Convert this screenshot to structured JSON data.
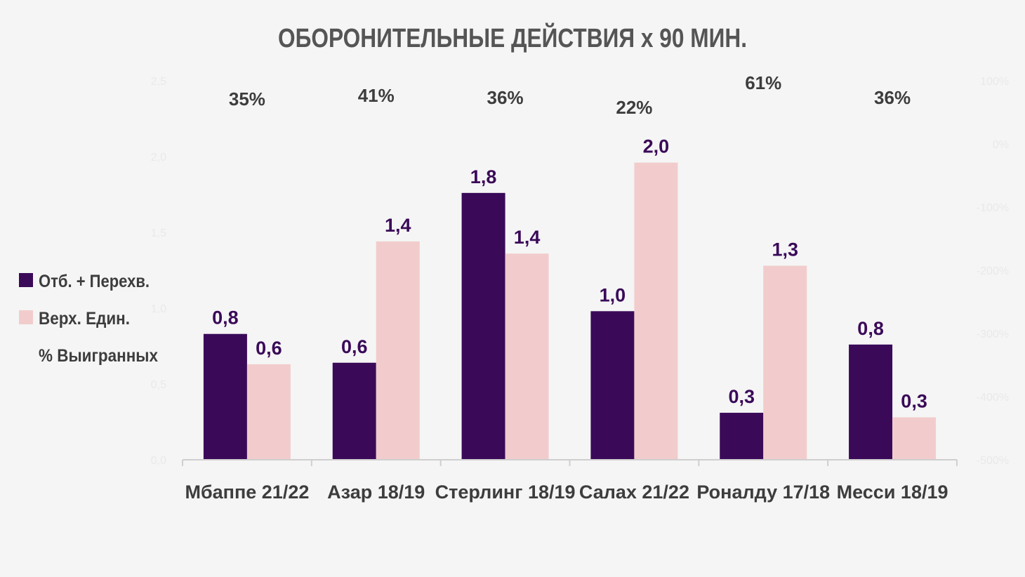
{
  "colors": {
    "background": "#f5f5f5",
    "series1": "#3a0a59",
    "series2": "#f2cccc",
    "value_label": "#3a0a59",
    "text": "#3d3d3d",
    "axis": "#cfcfcf",
    "faint_tick": "#e9e9e9"
  },
  "chart_data": {
    "type": "bar",
    "title": "ОБОРОНИТЕЛЬНЫЕ ДЕЙСТВИЯ х 90 МИН.",
    "categories": [
      "Мбаппе 21/22",
      "Азар 18/19",
      "Стерлинг 18/19",
      "Салах 21/22",
      "Роналду 17/18",
      "Месси 18/19"
    ],
    "series": [
      {
        "name": "Отб. + Перехв.",
        "values": [
          0.83,
          0.64,
          1.76,
          0.98,
          0.31,
          0.76
        ],
        "labels": [
          "0,8",
          "0,6",
          "1,8",
          "1,0",
          "0,3",
          "0,8"
        ]
      },
      {
        "name": "Верх. Един.",
        "values": [
          0.63,
          1.44,
          1.36,
          1.96,
          1.28,
          0.28
        ],
        "labels": [
          "0,6",
          "1,4",
          "1,4",
          "2,0",
          "1,3",
          "0,3"
        ]
      }
    ],
    "secondary_series": {
      "name": "% Выигранных",
      "values": [
        35,
        41,
        36,
        22,
        61,
        36
      ],
      "labels": [
        "35%",
        "41%",
        "36%",
        "22%",
        "61%",
        "36%"
      ]
    },
    "ylim": [
      0,
      2.5
    ],
    "y_ticks": [
      "0,0",
      "0,5",
      "1,0",
      "1,5",
      "2,0",
      "2,5"
    ],
    "y2_ticks": [
      "100%",
      "0%",
      "-100%",
      "-200%",
      "-300%",
      "-400%",
      "-500%"
    ],
    "legend_position": "left",
    "grid": false
  }
}
